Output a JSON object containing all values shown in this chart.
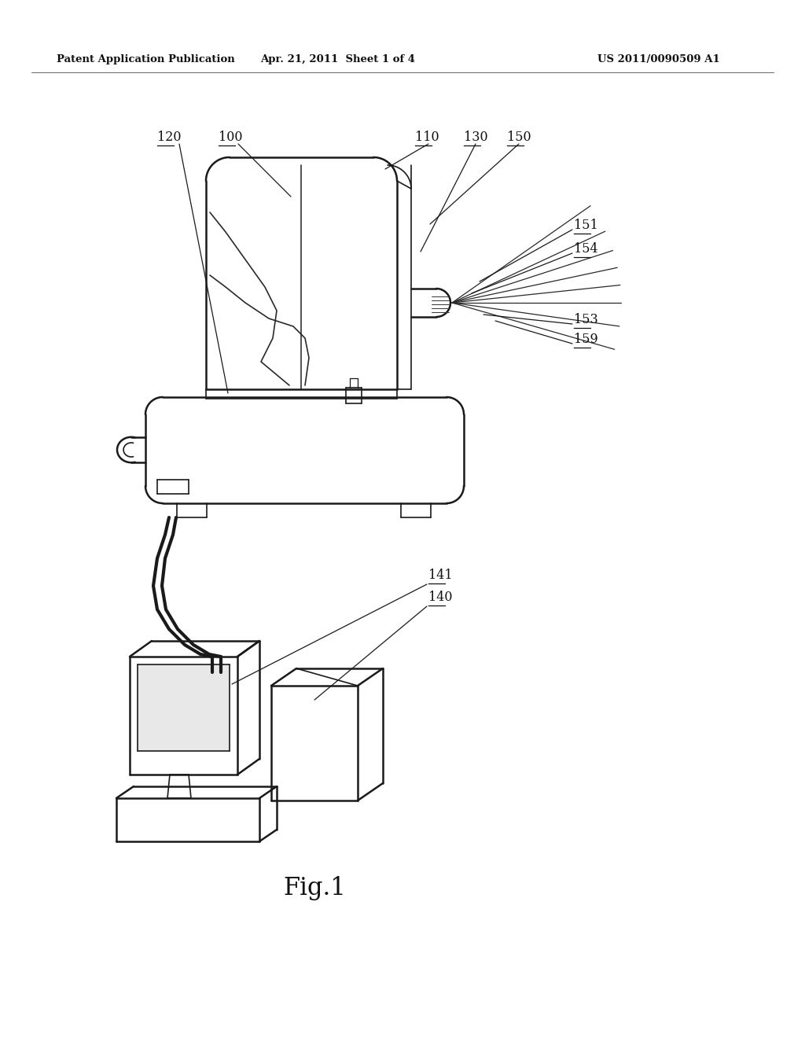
{
  "background_color": "#ffffff",
  "header_left": "Patent Application Publication",
  "header_center": "Apr. 21, 2011  Sheet 1 of 4",
  "header_right": "US 2011/0090509 A1",
  "fig_label": "Fig.1",
  "line_color": "#1a1a1a",
  "label_fontsize": 11.5,
  "fig_label_fontsize": 22,
  "header_fontsize": 9.5
}
